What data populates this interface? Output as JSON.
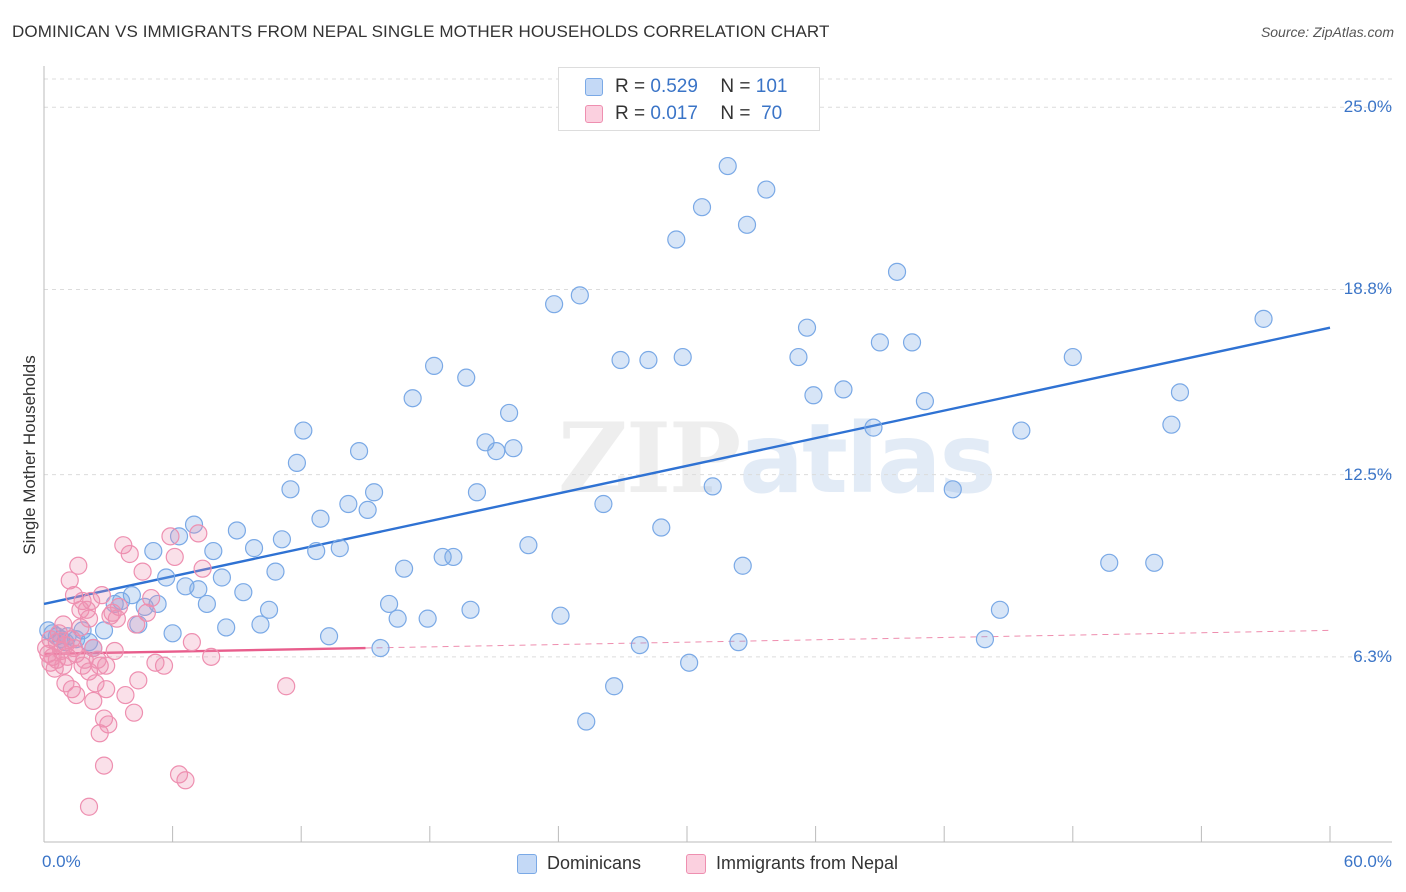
{
  "header": {
    "title": "DOMINICAN VS IMMIGRANTS FROM NEPAL SINGLE MOTHER HOUSEHOLDS CORRELATION CHART",
    "source": "Source: ZipAtlas.com"
  },
  "watermark": {
    "zip": "ZIP",
    "atlas": "atlas"
  },
  "legend": {
    "rows": [
      {
        "r_label": "R =",
        "r_value": "0.529",
        "n_label": "N =",
        "n_value": "101",
        "color": "#7aa9e6"
      },
      {
        "r_label": "R =",
        "r_value": "0.017",
        "n_label": "N =",
        "n_value": "70",
        "color": "#ee8fb0"
      }
    ]
  },
  "bottom_legend": {
    "items": [
      {
        "label": "Dominicans",
        "color": "#7aa9e6"
      },
      {
        "label": "Immigrants from Nepal",
        "color": "#ee8fb0"
      }
    ]
  },
  "chart_data": {
    "type": "scatter",
    "title": "DOMINICAN VS IMMIGRANTS FROM NEPAL SINGLE MOTHER HOUSEHOLDS CORRELATION CHART",
    "xlabel": "",
    "ylabel": "Single Mother Households",
    "xlim": [
      0,
      60
    ],
    "ylim": [
      0,
      26.2
    ],
    "x_tick_labels": [
      "0.0%",
      "60.0%"
    ],
    "y_ticks": [
      {
        "value": 6.3,
        "label": "6.3%"
      },
      {
        "value": 12.5,
        "label": "12.5%"
      },
      {
        "value": 18.8,
        "label": "18.8%"
      },
      {
        "value": 25.0,
        "label": "25.0%"
      }
    ],
    "grid": "horizontal-dashed",
    "legend_position": "top-center",
    "series": [
      {
        "name": "Dominicans",
        "color": "#7aa9e6",
        "line_color": "#2f72d3",
        "trend": {
          "x": [
            0,
            60
          ],
          "y": [
            8.1,
            17.5
          ],
          "dashed_from": null
        },
        "points": [
          [
            0.2,
            7.2
          ],
          [
            0.4,
            7.1
          ],
          [
            0.6,
            7.0
          ],
          [
            0.8,
            6.9
          ],
          [
            1.0,
            6.8
          ],
          [
            1.1,
            7.0
          ],
          [
            1.5,
            6.9
          ],
          [
            1.8,
            7.2
          ],
          [
            2.1,
            6.8
          ],
          [
            2.3,
            6.6
          ],
          [
            2.8,
            7.2
          ],
          [
            3.3,
            8.1
          ],
          [
            3.6,
            8.2
          ],
          [
            4.1,
            8.4
          ],
          [
            4.4,
            7.4
          ],
          [
            4.7,
            8.0
          ],
          [
            5.1,
            9.9
          ],
          [
            5.3,
            8.1
          ],
          [
            5.7,
            9.0
          ],
          [
            6.0,
            7.1
          ],
          [
            6.3,
            10.4
          ],
          [
            6.6,
            8.7
          ],
          [
            7.0,
            10.8
          ],
          [
            7.2,
            8.6
          ],
          [
            7.6,
            8.1
          ],
          [
            7.9,
            9.9
          ],
          [
            8.3,
            9.0
          ],
          [
            8.5,
            7.3
          ],
          [
            9.0,
            10.6
          ],
          [
            9.3,
            8.5
          ],
          [
            9.8,
            10.0
          ],
          [
            10.1,
            7.4
          ],
          [
            10.5,
            7.9
          ],
          [
            10.8,
            9.2
          ],
          [
            11.1,
            10.3
          ],
          [
            11.5,
            12.0
          ],
          [
            11.8,
            12.9
          ],
          [
            12.1,
            14.0
          ],
          [
            12.7,
            9.9
          ],
          [
            12.9,
            11.0
          ],
          [
            13.3,
            7.0
          ],
          [
            13.8,
            10.0
          ],
          [
            14.2,
            11.5
          ],
          [
            14.7,
            13.3
          ],
          [
            15.1,
            11.3
          ],
          [
            15.4,
            11.9
          ],
          [
            15.7,
            6.6
          ],
          [
            16.1,
            8.1
          ],
          [
            16.5,
            7.6
          ],
          [
            16.8,
            9.3
          ],
          [
            17.2,
            15.1
          ],
          [
            17.9,
            7.6
          ],
          [
            18.2,
            16.2
          ],
          [
            18.6,
            9.7
          ],
          [
            19.1,
            9.7
          ],
          [
            19.7,
            15.8
          ],
          [
            19.9,
            7.9
          ],
          [
            20.2,
            11.9
          ],
          [
            20.6,
            13.6
          ],
          [
            21.1,
            13.3
          ],
          [
            21.7,
            14.6
          ],
          [
            21.9,
            13.4
          ],
          [
            22.6,
            10.1
          ],
          [
            23.8,
            18.3
          ],
          [
            24.1,
            7.7
          ],
          [
            25.0,
            18.6
          ],
          [
            25.3,
            4.1
          ],
          [
            26.1,
            11.5
          ],
          [
            26.6,
            5.3
          ],
          [
            26.9,
            16.4
          ],
          [
            27.8,
            6.7
          ],
          [
            28.2,
            16.4
          ],
          [
            28.8,
            10.7
          ],
          [
            29.5,
            20.5
          ],
          [
            30.1,
            6.1
          ],
          [
            29.8,
            16.5
          ],
          [
            30.7,
            21.6
          ],
          [
            31.2,
            12.1
          ],
          [
            31.9,
            23.0
          ],
          [
            32.4,
            6.8
          ],
          [
            32.6,
            9.4
          ],
          [
            32.8,
            21.0
          ],
          [
            33.7,
            22.2
          ],
          [
            35.2,
            16.5
          ],
          [
            35.6,
            17.5
          ],
          [
            35.9,
            15.2
          ],
          [
            37.3,
            15.4
          ],
          [
            38.7,
            14.1
          ],
          [
            39.0,
            17.0
          ],
          [
            39.8,
            19.4
          ],
          [
            40.5,
            17.0
          ],
          [
            41.1,
            15.0
          ],
          [
            42.4,
            12.0
          ],
          [
            43.9,
            6.9
          ],
          [
            44.6,
            7.9
          ],
          [
            45.6,
            14.0
          ],
          [
            48.0,
            16.5
          ],
          [
            49.7,
            9.5
          ],
          [
            51.8,
            9.5
          ],
          [
            52.6,
            14.2
          ],
          [
            53.0,
            15.3
          ],
          [
            56.9,
            17.8
          ]
        ]
      },
      {
        "name": "Immigrants from Nepal",
        "color": "#ee8fb0",
        "line_color": "#e85d8c",
        "trend": {
          "x": [
            0,
            60
          ],
          "y": [
            6.4,
            7.2
          ],
          "dashed_from": 15.0
        },
        "points": [
          [
            0.1,
            6.6
          ],
          [
            0.2,
            6.4
          ],
          [
            0.3,
            6.1
          ],
          [
            0.3,
            6.9
          ],
          [
            0.4,
            6.3
          ],
          [
            0.5,
            5.9
          ],
          [
            0.6,
            6.8
          ],
          [
            0.6,
            6.2
          ],
          [
            0.7,
            7.1
          ],
          [
            0.8,
            6.5
          ],
          [
            0.9,
            6.0
          ],
          [
            1.0,
            6.7
          ],
          [
            1.0,
            5.4
          ],
          [
            1.1,
            6.3
          ],
          [
            1.2,
            8.9
          ],
          [
            1.3,
            5.2
          ],
          [
            1.3,
            6.9
          ],
          [
            1.4,
            8.4
          ],
          [
            1.5,
            5.0
          ],
          [
            1.5,
            6.4
          ],
          [
            1.6,
            9.4
          ],
          [
            1.7,
            7.3
          ],
          [
            1.8,
            6.0
          ],
          [
            1.8,
            8.2
          ],
          [
            1.9,
            6.2
          ],
          [
            2.0,
            7.9
          ],
          [
            2.1,
            5.8
          ],
          [
            2.1,
            7.6
          ],
          [
            2.2,
            8.2
          ],
          [
            2.3,
            6.6
          ],
          [
            2.3,
            4.8
          ],
          [
            2.4,
            5.4
          ],
          [
            2.5,
            6.2
          ],
          [
            2.6,
            3.7
          ],
          [
            2.6,
            6.0
          ],
          [
            2.7,
            8.4
          ],
          [
            2.8,
            4.2
          ],
          [
            2.8,
            2.6
          ],
          [
            2.9,
            5.2
          ],
          [
            3.0,
            4.0
          ],
          [
            3.1,
            7.7
          ],
          [
            3.2,
            7.8
          ],
          [
            3.3,
            6.5
          ],
          [
            3.4,
            7.6
          ],
          [
            3.5,
            8.0
          ],
          [
            3.7,
            10.1
          ],
          [
            3.8,
            5.0
          ],
          [
            4.0,
            9.8
          ],
          [
            4.2,
            4.4
          ],
          [
            4.3,
            7.4
          ],
          [
            4.4,
            5.5
          ],
          [
            4.6,
            9.2
          ],
          [
            4.8,
            7.8
          ],
          [
            5.0,
            8.3
          ],
          [
            5.2,
            6.1
          ],
          [
            5.6,
            6.0
          ],
          [
            5.9,
            10.4
          ],
          [
            6.1,
            9.7
          ],
          [
            6.3,
            2.3
          ],
          [
            6.6,
            2.1
          ],
          [
            6.9,
            6.8
          ],
          [
            7.2,
            10.5
          ],
          [
            7.4,
            9.3
          ],
          [
            7.8,
            6.3
          ],
          [
            2.1,
            1.2
          ],
          [
            1.4,
            6.6
          ],
          [
            0.9,
            7.4
          ],
          [
            1.7,
            7.9
          ],
          [
            11.3,
            5.3
          ],
          [
            2.9,
            6.0
          ]
        ]
      }
    ]
  }
}
